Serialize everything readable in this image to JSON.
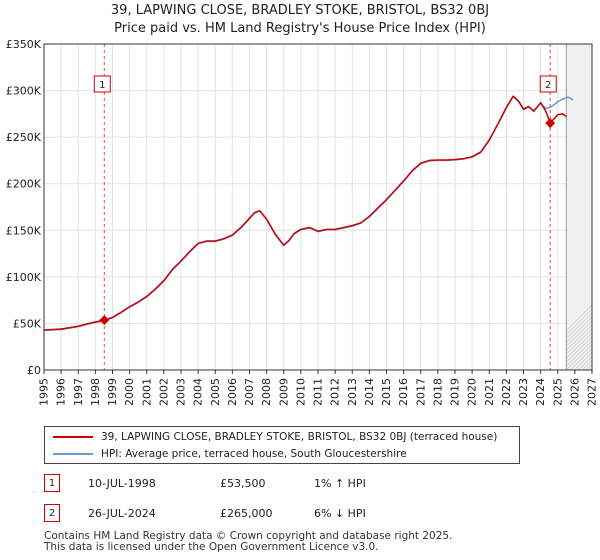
{
  "chart_data": {
    "type": "line",
    "title": "39, LAPWING CLOSE, BRADLEY STOKE, BRISTOL, BS32 0BJ",
    "subtitle": "Price paid vs. HM Land Registry's House Price Index (HPI)",
    "xlim": [
      1995,
      2027
    ],
    "ylim": [
      0,
      350000
    ],
    "y_ticks": [
      {
        "value": 0,
        "label": "£0"
      },
      {
        "value": 50000,
        "label": "£50K"
      },
      {
        "value": 100000,
        "label": "£100K"
      },
      {
        "value": 150000,
        "label": "£150K"
      },
      {
        "value": 200000,
        "label": "£200K"
      },
      {
        "value": 250000,
        "label": "£250K"
      },
      {
        "value": 300000,
        "label": "£300K"
      },
      {
        "value": 350000,
        "label": "£350K"
      }
    ],
    "x_ticks": [
      "1995",
      "1996",
      "1997",
      "1998",
      "1999",
      "2000",
      "2001",
      "2002",
      "2003",
      "2004",
      "2005",
      "2006",
      "2007",
      "2008",
      "2009",
      "2010",
      "2011",
      "2012",
      "2013",
      "2014",
      "2015",
      "2016",
      "2017",
      "2018",
      "2019",
      "2020",
      "2021",
      "2022",
      "2023",
      "2024",
      "2025",
      "2026",
      "2027"
    ],
    "future_start": 2025.5,
    "series": [
      {
        "name": "39, LAPWING CLOSE, BRADLEY STOKE, BRISTOL, BS32 0BJ (terraced house)",
        "color": "#cc0000",
        "x": [
          1995.0,
          1995.5,
          1996.0,
          1996.5,
          1997.0,
          1997.5,
          1998.0,
          1998.52,
          1999.0,
          1999.5,
          2000.0,
          2000.5,
          2001.0,
          2001.5,
          2002.0,
          2002.5,
          2003.0,
          2003.5,
          2004.0,
          2004.5,
          2005.0,
          2005.5,
          2006.0,
          2006.5,
          2007.0,
          2007.3,
          2007.6,
          2008.0,
          2008.5,
          2009.0,
          2009.3,
          2009.6,
          2010.0,
          2010.5,
          2011.0,
          2011.5,
          2012.0,
          2012.5,
          2013.0,
          2013.5,
          2014.0,
          2014.5,
          2015.0,
          2015.5,
          2016.0,
          2016.5,
          2017.0,
          2017.5,
          2018.0,
          2018.5,
          2019.0,
          2019.5,
          2020.0,
          2020.5,
          2021.0,
          2021.5,
          2022.0,
          2022.4,
          2022.7,
          2023.0,
          2023.3,
          2023.6,
          2024.0,
          2024.3,
          2024.56,
          2024.8,
          2025.0,
          2025.3,
          2025.5
        ],
        "values": [
          43000,
          43500,
          44000,
          45500,
          47000,
          49500,
          51500,
          53500,
          56500,
          62000,
          68000,
          73000,
          79000,
          87000,
          96000,
          108000,
          117000,
          127000,
          136000,
          138500,
          138500,
          141000,
          145000,
          153000,
          163000,
          169000,
          171000,
          162000,
          146000,
          134000,
          139000,
          146500,
          151000,
          153000,
          149000,
          151000,
          151000,
          153000,
          155000,
          158000,
          165000,
          174000,
          183000,
          193000,
          203000,
          214000,
          222000,
          225000,
          225500,
          225500,
          226000,
          227000,
          229000,
          234000,
          247000,
          264000,
          282000,
          294000,
          289000,
          280000,
          283000,
          278000,
          287000,
          278000,
          265000,
          270000,
          274000,
          275000,
          272000
        ]
      },
      {
        "name": "HPI: Average price, terraced house, South Gloucestershire",
        "color": "#6b9bd1",
        "x": [
          1995.0,
          1995.5,
          1996.0,
          1996.5,
          1997.0,
          1997.5,
          1998.0,
          1998.52,
          1999.0,
          1999.5,
          2000.0,
          2000.5,
          2001.0,
          2001.5,
          2002.0,
          2002.5,
          2003.0,
          2003.5,
          2004.0,
          2004.5,
          2005.0,
          2005.5,
          2006.0,
          2006.5,
          2007.0,
          2007.3,
          2007.6,
          2008.0,
          2008.5,
          2009.0,
          2009.3,
          2009.6,
          2010.0,
          2010.5,
          2011.0,
          2011.5,
          2012.0,
          2012.5,
          2013.0,
          2013.5,
          2014.0,
          2014.5,
          2015.0,
          2015.5,
          2016.0,
          2016.5,
          2017.0,
          2017.5,
          2018.0,
          2018.5,
          2019.0,
          2019.5,
          2020.0,
          2020.5,
          2021.0,
          2021.5,
          2022.0,
          2022.4,
          2022.7,
          2023.0,
          2023.3,
          2023.6,
          2024.0,
          2024.3,
          2024.56,
          2024.8,
          2025.0,
          2025.3,
          2025.6,
          2025.9
        ],
        "values": [
          42500,
          43000,
          43500,
          45000,
          46500,
          49000,
          51000,
          53000,
          56000,
          61500,
          67500,
          72500,
          78500,
          86500,
          95500,
          107500,
          116500,
          126500,
          135500,
          138000,
          138000,
          140500,
          144500,
          152500,
          162500,
          168500,
          170500,
          161500,
          145500,
          133500,
          138500,
          146000,
          150500,
          152500,
          148500,
          150500,
          150500,
          152500,
          154500,
          157500,
          164500,
          173500,
          182500,
          192500,
          202500,
          213500,
          221500,
          224500,
          225000,
          225000,
          225500,
          226500,
          228500,
          233500,
          246500,
          263500,
          281500,
          293500,
          288500,
          279500,
          282500,
          277500,
          286500,
          281000,
          282000,
          285000,
          288000,
          291000,
          293000,
          290000
        ]
      }
    ],
    "sales": [
      {
        "id": "1",
        "x": 1998.52,
        "price": 53500,
        "date": "10-JUL-1998",
        "price_label": "£53,500",
        "hpi": "1% ↑ HPI"
      },
      {
        "id": "2",
        "x": 2024.56,
        "price": 265000,
        "date": "26-JUL-2024",
        "price_label": "£265,000",
        "hpi": "6% ↓ HPI"
      }
    ]
  },
  "legend": {
    "property_label": "39, LAPWING CLOSE, BRADLEY STOKE, BRISTOL, BS32 0BJ (terraced house)",
    "hpi_label": "HPI: Average price, terraced house, South Gloucestershire",
    "property_color": "#cc0000",
    "hpi_color": "#6b9bd1"
  },
  "footer": {
    "line1": "Contains HM Land Registry data © Crown copyright and database right 2025.",
    "line2": "This data is licensed under the Open Government Licence v3.0."
  }
}
